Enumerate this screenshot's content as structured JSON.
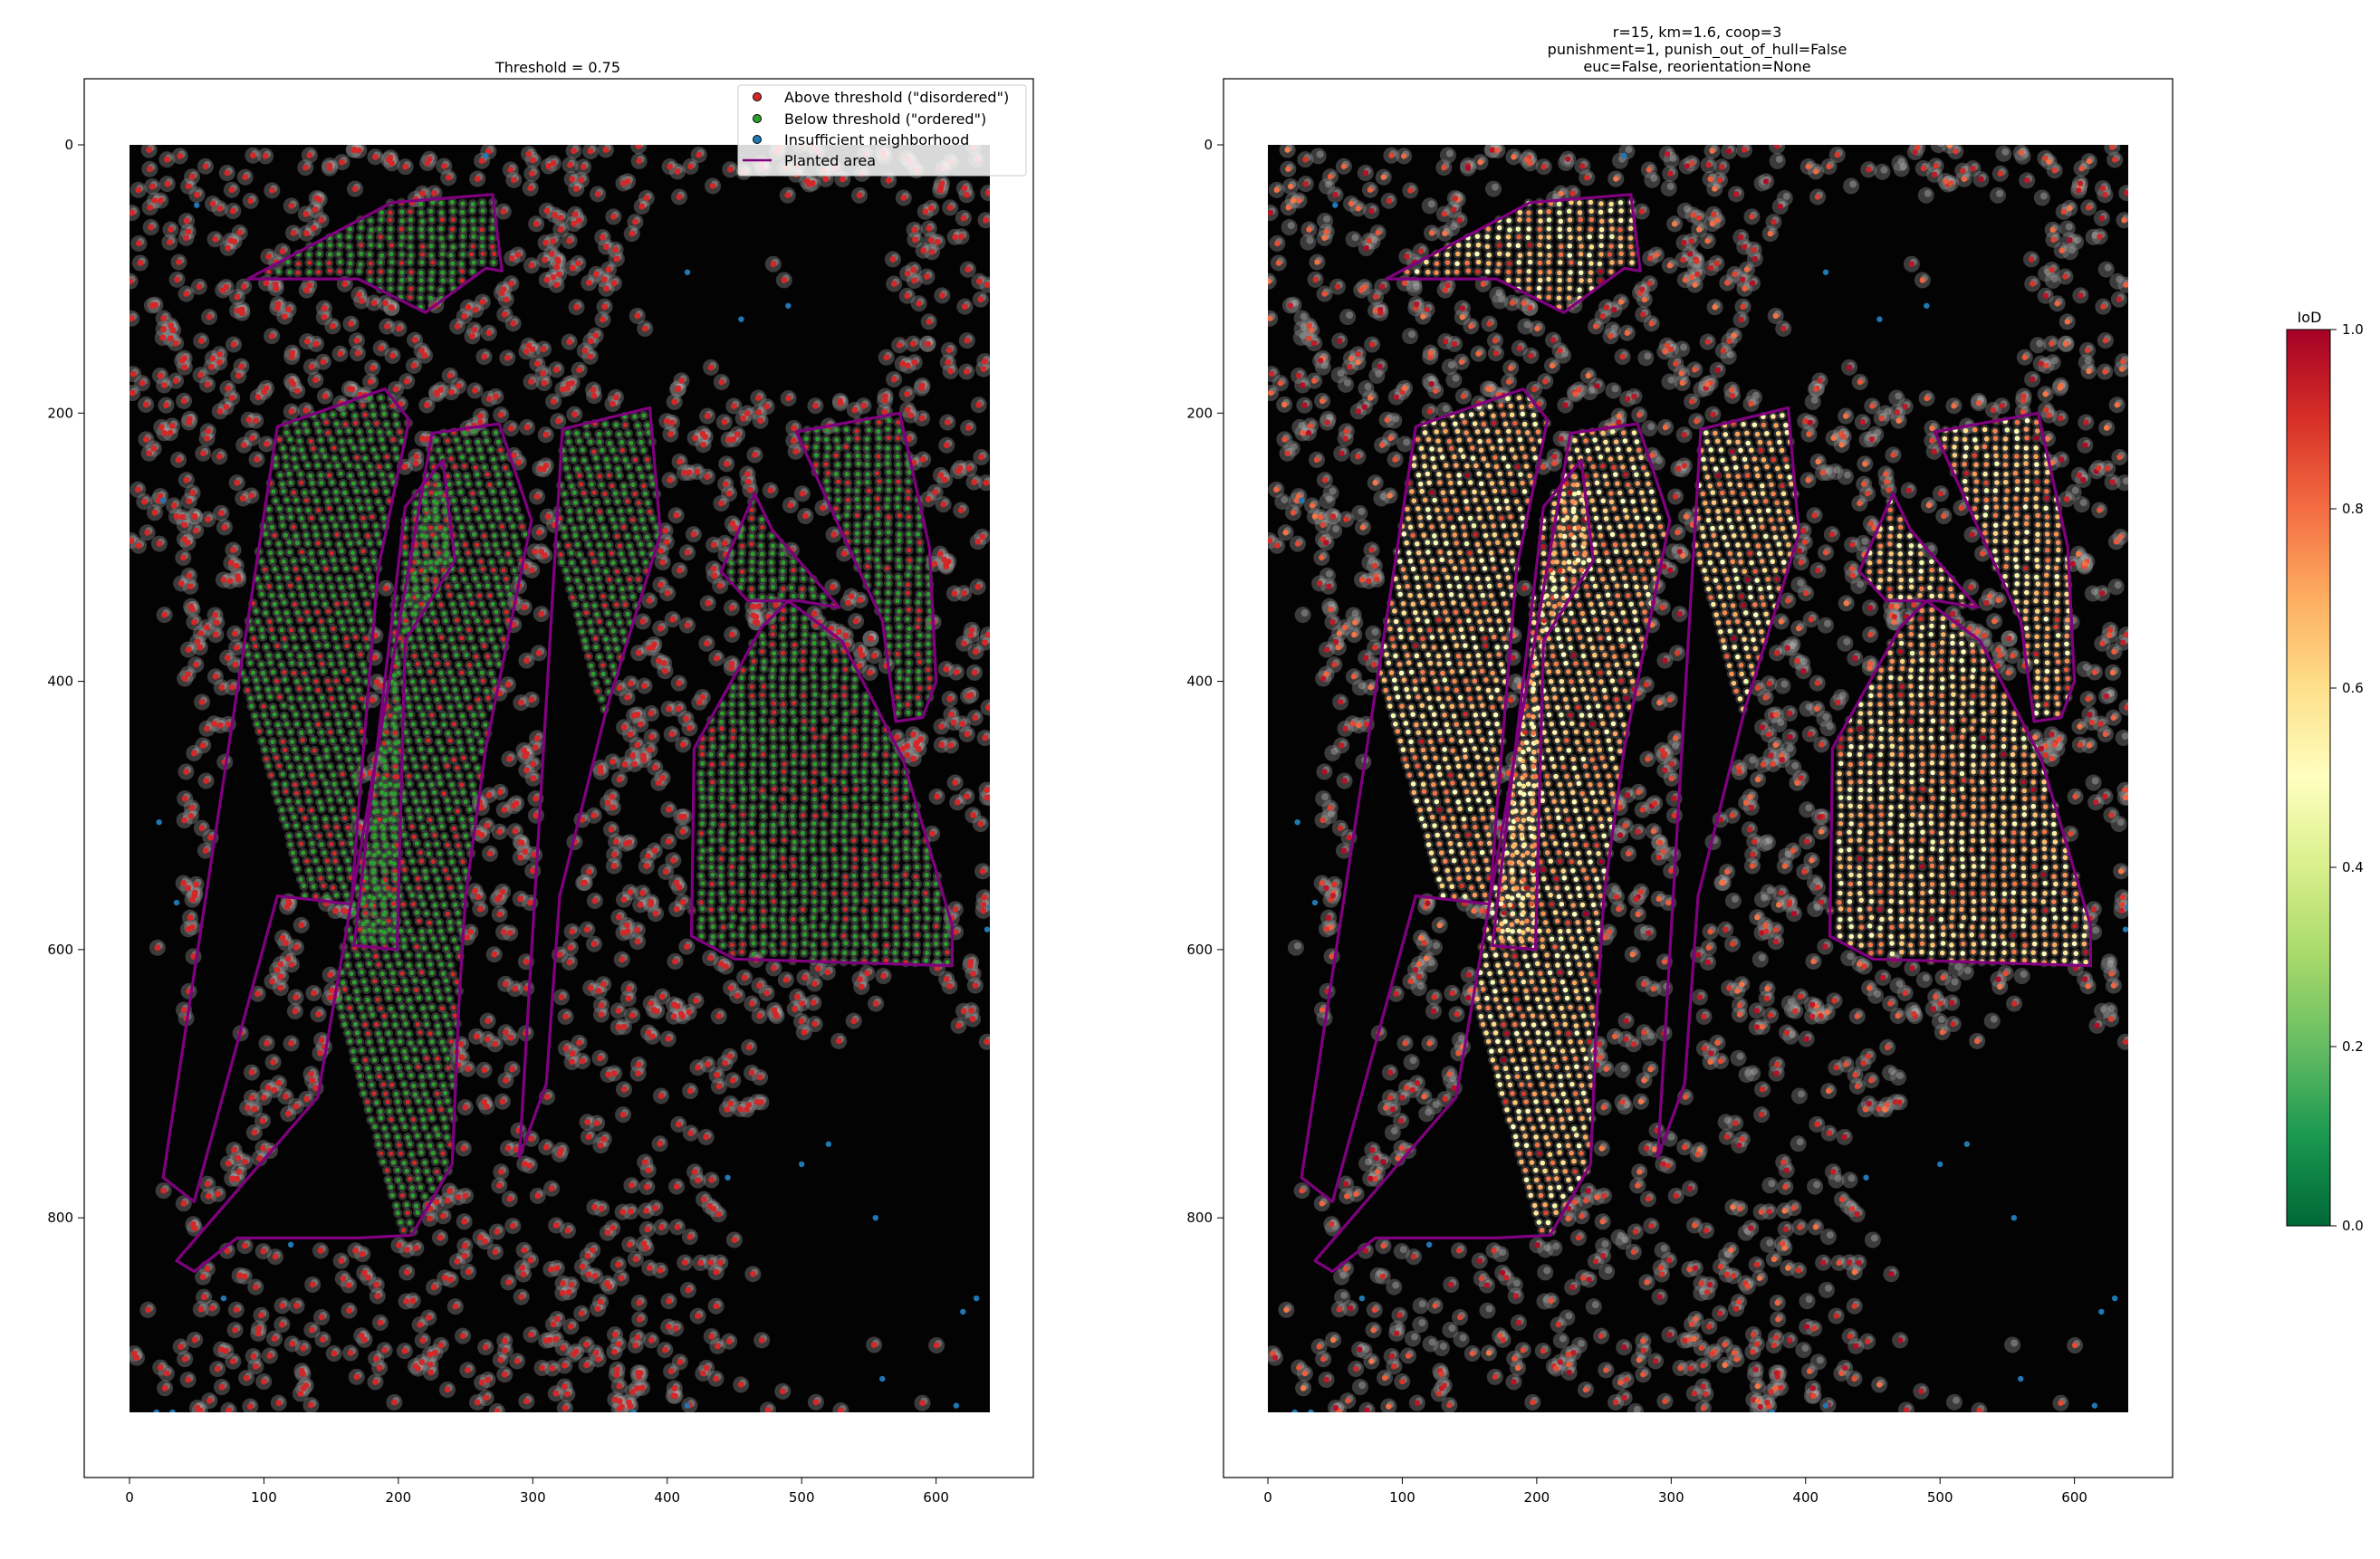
{
  "chart_data": [
    {
      "type": "scatter",
      "title": "Threshold = 0.75",
      "background": "black aerial orthophoto with grey tree crowns",
      "xlim": [
        -33,
        672
      ],
      "ylim": [
        1000,
        -50
      ],
      "xticks": [
        0,
        100,
        200,
        300,
        400,
        500,
        600
      ],
      "yticks": [
        0,
        200,
        400,
        600,
        800
      ],
      "image_extent": {
        "x": [
          0,
          640
        ],
        "y": [
          0,
          945
        ]
      },
      "legend": {
        "placement": "top-right",
        "entries": [
          {
            "label": "Above threshold (\"disordered\")",
            "marker": "point",
            "color": "#d62728"
          },
          {
            "label": "Below threshold (\"ordered\")",
            "marker": "point",
            "color": "#2ca02c"
          },
          {
            "label": "Insufficient neighborhood",
            "marker": "point",
            "color": "#1f77b4"
          },
          {
            "label": "Planted area",
            "marker": "line",
            "color": "#800080"
          }
        ]
      },
      "planted_areas": [
        [
          [
            88,
            100
          ],
          [
            195,
            43
          ],
          [
            270,
            37
          ],
          [
            277,
            94
          ],
          [
            265,
            92
          ],
          [
            220,
            125
          ],
          [
            170,
            100
          ]
        ],
        [
          [
            110,
            210
          ],
          [
            190,
            182
          ],
          [
            208,
            205
          ],
          [
            185,
            316
          ],
          [
            170,
            500
          ],
          [
            165,
            566
          ],
          [
            110,
            560
          ],
          [
            48,
            788
          ],
          [
            25,
            770
          ]
        ],
        [
          [
            205,
            270
          ],
          [
            233,
            235
          ],
          [
            242,
            310
          ],
          [
            205,
            370
          ],
          [
            199,
            600
          ],
          [
            167,
            597
          ]
        ],
        [
          [
            225,
            215
          ],
          [
            275,
            208
          ],
          [
            299,
            280
          ],
          [
            265,
            450
          ],
          [
            250,
            560
          ],
          [
            245,
            640
          ],
          [
            240,
            760
          ],
          [
            210,
            813
          ],
          [
            170,
            815
          ],
          [
            80,
            815
          ],
          [
            48,
            840
          ],
          [
            35,
            832
          ],
          [
            140,
            710
          ]
        ],
        [
          [
            322,
            212
          ],
          [
            387,
            196
          ],
          [
            395,
            290
          ],
          [
            355,
            420
          ],
          [
            320,
            560
          ],
          [
            310,
            700
          ],
          [
            290,
            755
          ]
        ],
        [
          [
            496,
            214
          ],
          [
            573,
            200
          ],
          [
            595,
            300
          ],
          [
            600,
            400
          ],
          [
            590,
            427
          ],
          [
            570,
            430
          ],
          [
            560,
            355
          ],
          [
            528,
            285
          ]
        ],
        [
          [
            440,
            318
          ],
          [
            465,
            260
          ],
          [
            478,
            287
          ],
          [
            528,
            345
          ],
          [
            498,
            340
          ],
          [
            460,
            340
          ]
        ],
        [
          [
            420,
            450
          ],
          [
            470,
            360
          ],
          [
            490,
            340
          ],
          [
            530,
            370
          ],
          [
            575,
            457
          ],
          [
            612,
            582
          ],
          [
            612,
            612
          ],
          [
            450,
            607
          ],
          [
            418,
            590
          ]
        ]
      ]
    },
    {
      "type": "scatter",
      "title": "r=15, km=1.6, coop=3\npunishment=1, punish_out_of_hull=False\neuc=False, reorientation=None",
      "title_lines": [
        "r=15, km=1.6, coop=3",
        "punishment=1, punish_out_of_hull=False",
        "euc=False, reorientation=None"
      ],
      "xlim": [
        -33,
        672
      ],
      "ylim": [
        1000,
        -50
      ],
      "xticks": [
        0,
        100,
        200,
        300,
        400,
        500,
        600
      ],
      "yticks": [
        0,
        200,
        400,
        600,
        800
      ],
      "image_extent": {
        "x": [
          0,
          640
        ],
        "y": [
          0,
          945
        ]
      },
      "color_by": "IoD",
      "colorbar": {
        "label": "IoD",
        "colormap": "RdYlGn_r",
        "range": [
          0.0,
          1.0
        ],
        "ticks": [
          "0.0",
          "0.2",
          "0.4",
          "0.6",
          "0.8",
          "1.0"
        ],
        "colors": [
          "#006837",
          "#1a9850",
          "#66bd63",
          "#a6d96a",
          "#d9ef8b",
          "#ffffbf",
          "#fee08b",
          "#fdae61",
          "#f46d43",
          "#d73027",
          "#a50026"
        ]
      }
    }
  ],
  "colors": {
    "disordered": "#d62728",
    "ordered": "#2ca02c",
    "insufficient": "#1f77b4",
    "planted": "#800080"
  }
}
